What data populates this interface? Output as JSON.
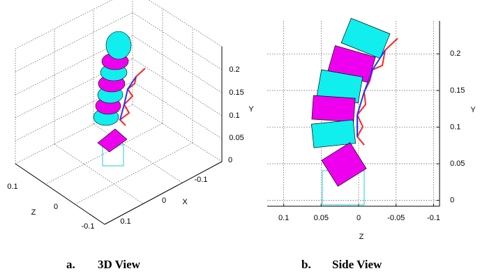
{
  "figures": [
    {
      "caption_label": "a.",
      "caption": "3D View",
      "axes": {
        "xlabel": "X",
        "ylabel": "Y",
        "zlabel": "Z",
        "xticks": [
          -0.1,
          0,
          0.1
        ],
        "yticks": [
          0,
          0.05,
          0.1,
          0.15,
          0.2
        ],
        "zticks": [
          0.1,
          0,
          -0.1
        ]
      }
    },
    {
      "caption_label": "b.",
      "caption": "Side View",
      "axes": {
        "xlabel": "Z",
        "ylabel": "Y",
        "xlim": [
          0.122,
          -0.108
        ],
        "ylim": [
          -0.008,
          0.245
        ],
        "xticks": [
          0.1,
          0.05,
          0,
          -0.05,
          -0.1
        ],
        "yticks": [
          0,
          0.05,
          0.1,
          0.15,
          0.2
        ]
      }
    }
  ]
}
